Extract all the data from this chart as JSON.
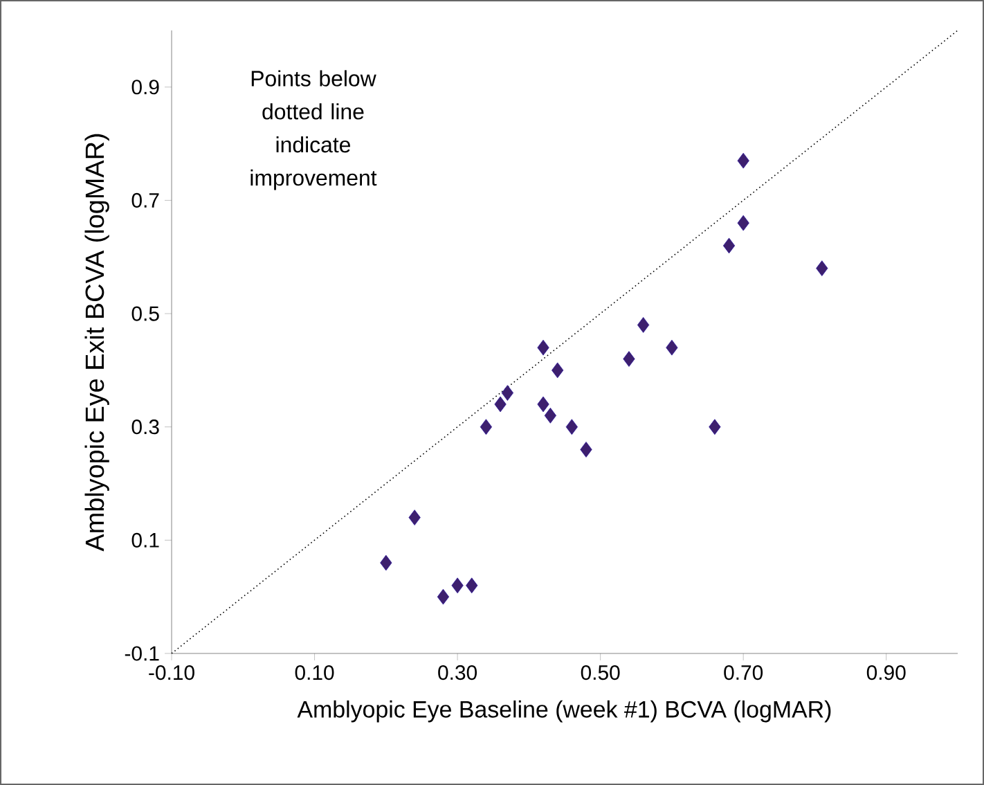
{
  "chart_data": {
    "type": "scatter",
    "xlabel": "Amblyopic Eye Baseline (week #1) BCVA (logMAR)",
    "ylabel": "Amblyopic Eye Exit BCVA (logMAR)",
    "annotations": [
      "Points below dotted line indicate improvement"
    ],
    "xlim": [
      -0.1,
      1.0
    ],
    "ylim": [
      -0.1,
      1.0
    ],
    "xticks": [
      {
        "value": -0.1,
        "label": "-0.10"
      },
      {
        "value": 0.1,
        "label": "0.10"
      },
      {
        "value": 0.3,
        "label": "0.30"
      },
      {
        "value": 0.5,
        "label": "0.50"
      },
      {
        "value": 0.7,
        "label": "0.70"
      },
      {
        "value": 0.9,
        "label": "0.90"
      }
    ],
    "yticks": [
      -0.1,
      0.1,
      0.3,
      0.5,
      0.7,
      0.9
    ],
    "grid": false,
    "series": [
      {
        "marker": "diamond",
        "color": "#3d1f6e",
        "x": [
          0.2,
          0.24,
          0.28,
          0.3,
          0.32,
          0.34,
          0.36,
          0.37,
          0.42,
          0.42,
          0.43,
          0.44,
          0.46,
          0.48,
          0.54,
          0.56,
          0.6,
          0.66,
          0.68,
          0.7,
          0.7,
          0.81
        ],
        "values": [
          0.06,
          0.14,
          0.0,
          0.02,
          0.02,
          0.3,
          0.34,
          0.36,
          0.44,
          0.34,
          0.32,
          0.4,
          0.3,
          0.26,
          0.42,
          0.48,
          0.44,
          0.3,
          0.62,
          0.66,
          0.77,
          0.58
        ]
      },
      {
        "type": "line",
        "marker": "none",
        "line_style": "dotted",
        "color": "#000000",
        "x": [
          -0.1,
          1.0
        ],
        "values": [
          -0.1,
          1.0
        ]
      }
    ]
  }
}
